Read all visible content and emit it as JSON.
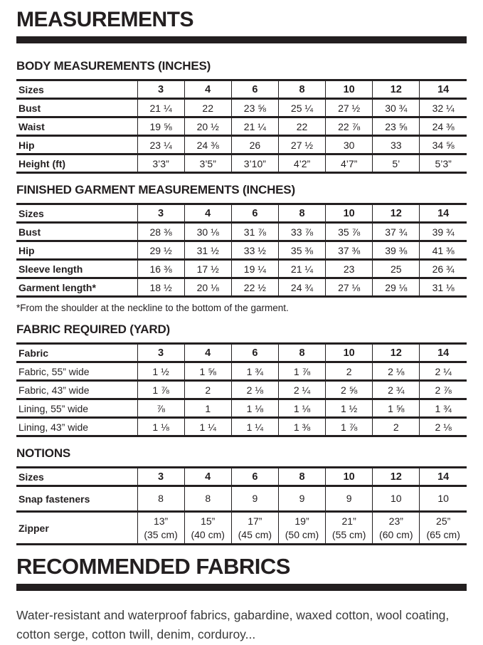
{
  "page_title": "MEASUREMENTS",
  "tables": [
    {
      "name": "body-measurements",
      "heading": "BODY MEASUREMENTS (INCHES)",
      "columns": [
        "Sizes",
        "3",
        "4",
        "6",
        "8",
        "10",
        "12",
        "14"
      ],
      "rows": [
        {
          "label": "Bust",
          "values": [
            "21 ¼",
            "22",
            "23 ⅝",
            "25 ¼",
            "27 ½",
            "30 ¾",
            "32 ¼"
          ]
        },
        {
          "label": "Waist",
          "values": [
            "19 ⅝",
            "20 ½",
            "21 ¼",
            "22",
            "22 ⅞",
            "23 ⅝",
            "24 ⅜"
          ]
        },
        {
          "label": "Hip",
          "values": [
            "23 ¼",
            "24 ⅜",
            "26",
            "27 ½",
            "30",
            "33",
            "34 ⅝"
          ]
        },
        {
          "label": "Height (ft)",
          "values": [
            "3’3”",
            "3’5”",
            "3’10”",
            "4’2”",
            "4’7”",
            "5’",
            "5’3”"
          ]
        }
      ]
    },
    {
      "name": "finished-garment",
      "heading": "FINISHED GARMENT MEASUREMENTS (INCHES)",
      "columns": [
        "Sizes",
        "3",
        "4",
        "6",
        "8",
        "10",
        "12",
        "14"
      ],
      "rows": [
        {
          "label": "Bust",
          "values": [
            "28 ⅜",
            "30 ⅛",
            "31 ⅞",
            "33 ⅞",
            "35 ⅞",
            "37 ¾",
            "39 ¾"
          ]
        },
        {
          "label": "Hip",
          "values": [
            "29 ½",
            "31 ½",
            "33 ½",
            "35 ⅜",
            "37 ⅜",
            "39 ⅜",
            "41 ⅜"
          ]
        },
        {
          "label": "Sleeve length",
          "values": [
            "16 ⅜",
            "17 ½",
            "19 ¼",
            "21 ¼",
            "23",
            "25",
            "26 ¾"
          ]
        },
        {
          "label": "Garment length*",
          "values": [
            "18 ½",
            "20 ⅛",
            "22 ½",
            "24 ¾",
            "27 ⅛",
            "29 ⅛",
            "31 ⅛"
          ]
        }
      ],
      "footnote": "*From the shoulder at the neckline to the bottom of the garment."
    },
    {
      "name": "fabric-required",
      "heading": "FABRIC REQUIRED (YARD)",
      "columns": [
        "Fabric",
        "3",
        "4",
        "6",
        "8",
        "10",
        "12",
        "14"
      ],
      "rows": [
        {
          "label": "Fabric, 55” wide",
          "values": [
            "1 ½",
            "1 ⅝",
            "1 ¾",
            "1 ⅞",
            "2",
            "2 ⅛",
            "2 ¼"
          ]
        },
        {
          "label": "Fabric, 43” wide",
          "values": [
            "1 ⅞",
            "2",
            "2 ⅛",
            "2 ¼",
            "2 ⅝",
            "2 ¾",
            "2 ⅞"
          ]
        },
        {
          "label": "Lining, 55” wide",
          "values": [
            "⅞",
            "1",
            "1 ⅛",
            "1 ⅛",
            "1 ½",
            "1 ⅝",
            "1 ¾"
          ]
        },
        {
          "label": "Lining, 43” wide",
          "values": [
            "1 ⅛",
            "1 ¼",
            "1 ¼",
            "1 ⅜",
            "1 ⅞",
            "2",
            "2 ⅛"
          ]
        }
      ]
    },
    {
      "name": "notions",
      "heading": "NOTIONS",
      "columns": [
        "Sizes",
        "3",
        "4",
        "6",
        "8",
        "10",
        "12",
        "14"
      ],
      "rows": [
        {
          "label": "Snap fasteners",
          "values": [
            "8",
            "8",
            "9",
            "9",
            "9",
            "10",
            "10"
          ]
        },
        {
          "label": "Zipper",
          "values": [
            "13”\n(35 cm)",
            "15”\n(40 cm)",
            "17”\n(45 cm)",
            "19”\n(50 cm)",
            "21”\n(55 cm)",
            "23”\n(60 cm)",
            "25”\n(65 cm)"
          ]
        }
      ]
    }
  ],
  "footer": {
    "title": "RECOMMENDED FABRICS",
    "paragraph": "Water-resistant and waterproof fabrics, gabardine, waxed cotton, wool coating, cotton serge, cotton twill, denim, corduroy..."
  }
}
